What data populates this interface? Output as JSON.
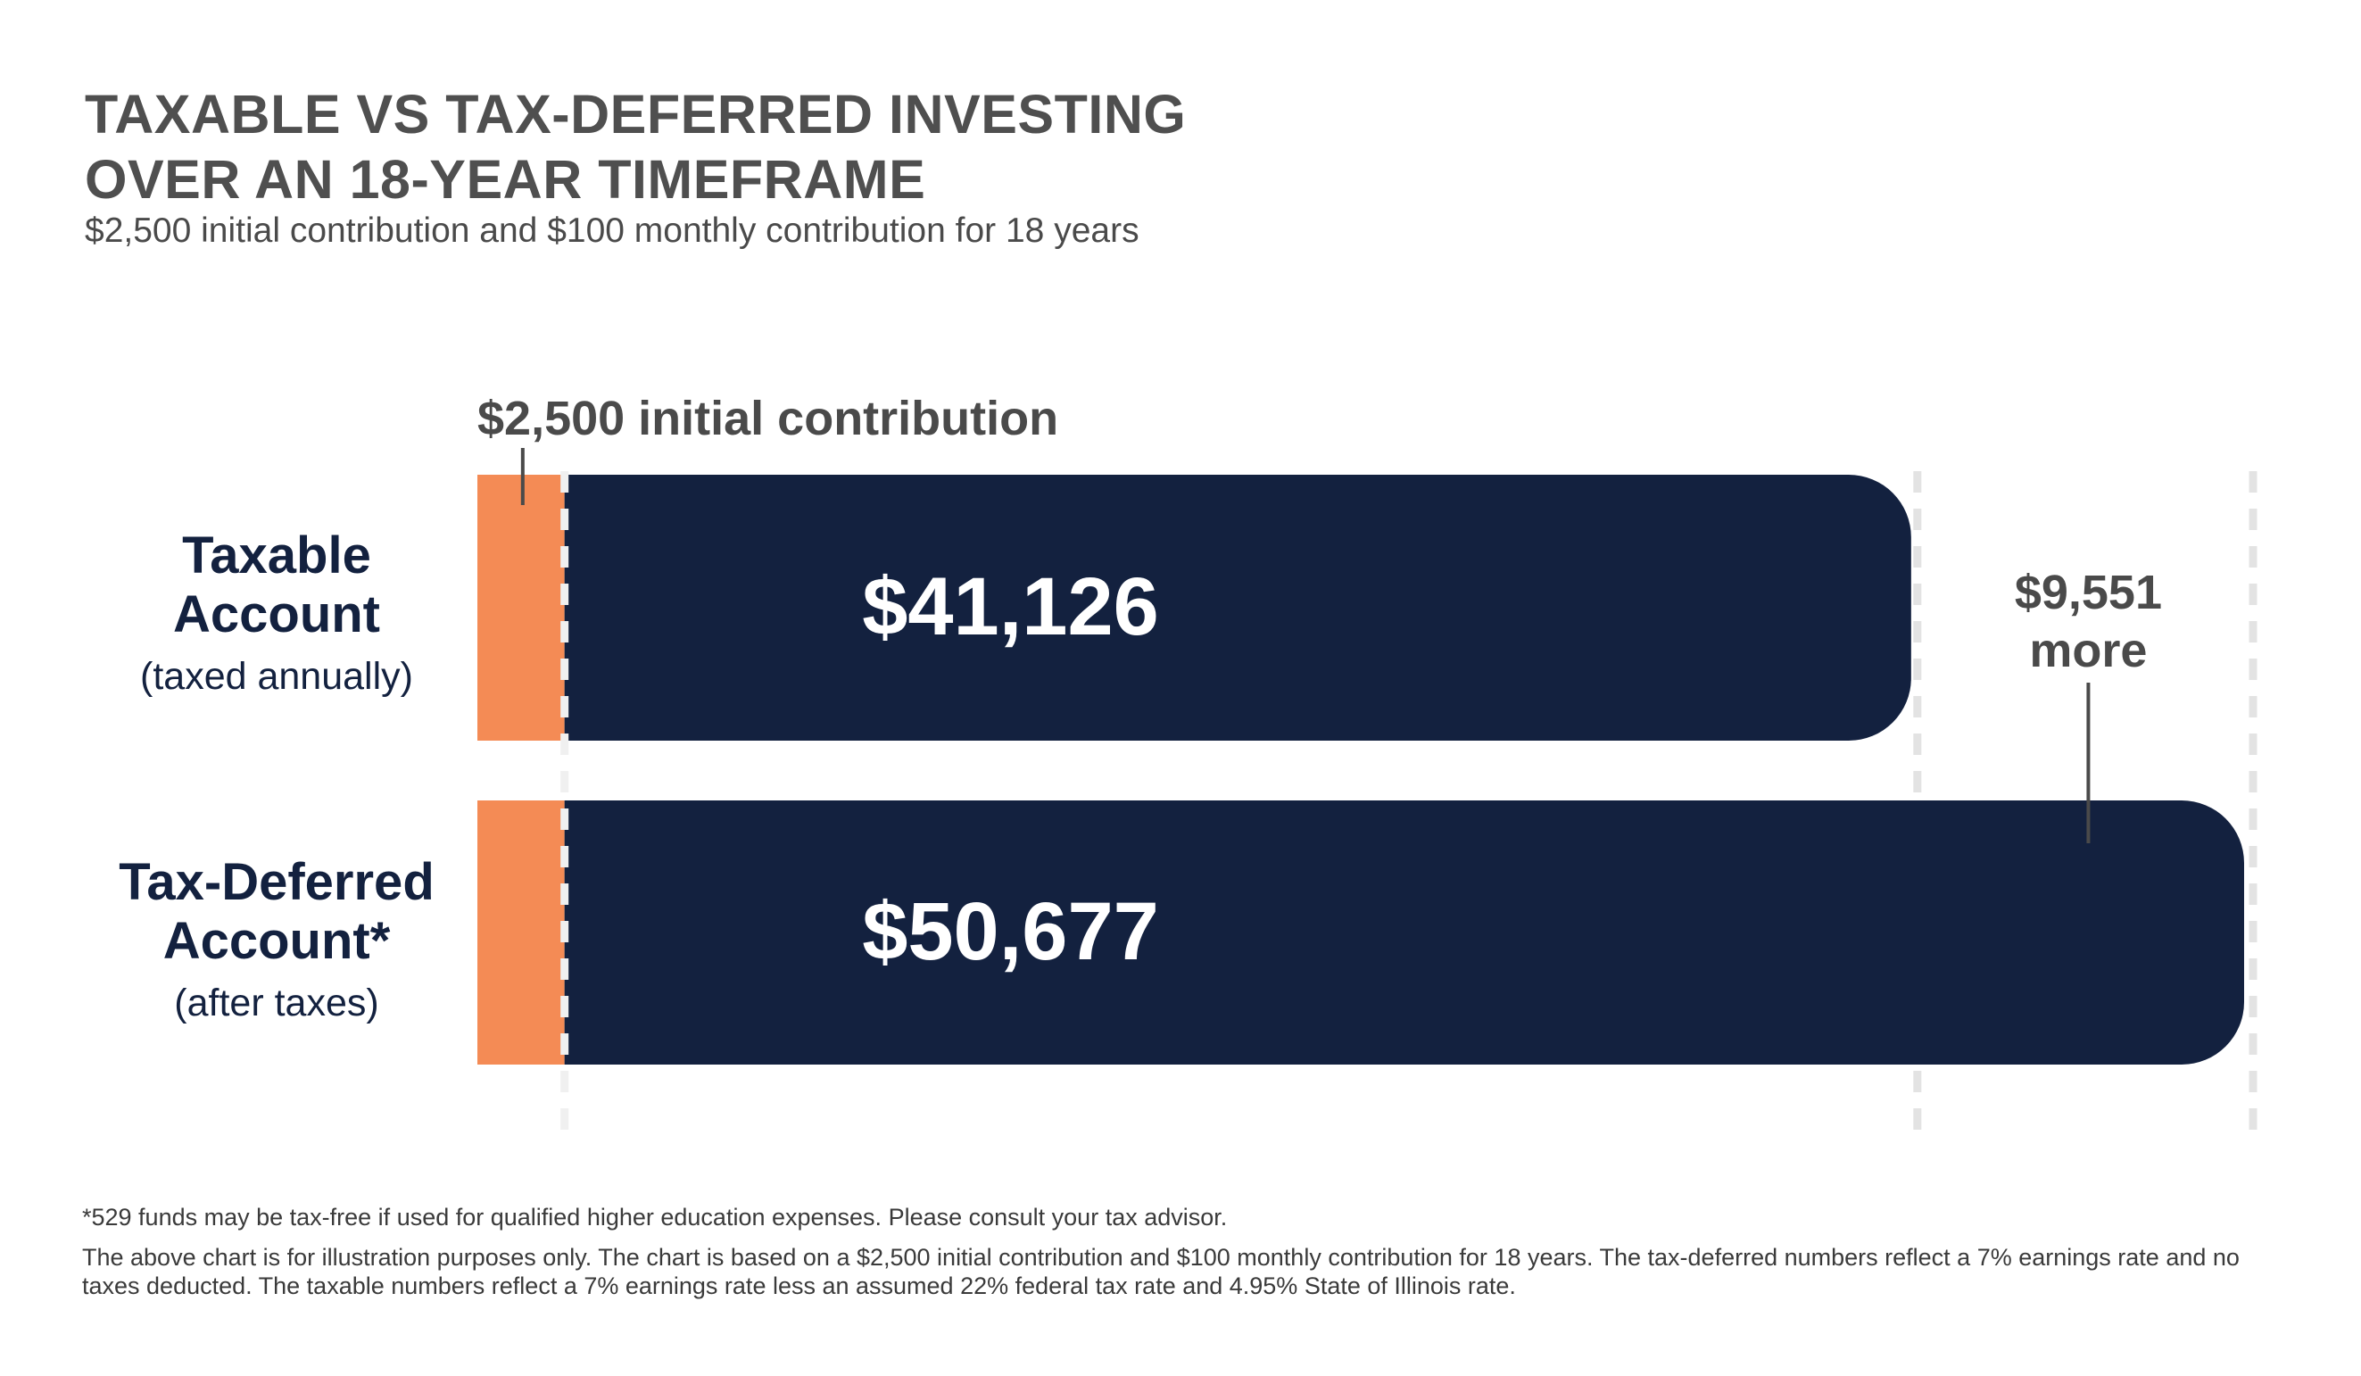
{
  "title_lines": [
    "TAXABLE VS TAX-DEFERRED INVESTING",
    "OVER AN 18-YEAR TIMEFRAME"
  ],
  "subtitle": "$2,500 initial contribution and $100 monthly contribution for 18 years",
  "colors": {
    "bar": "#13213f",
    "initial": "#f48b55",
    "text_dark": "#13213f",
    "text_grey": "#4a4a4a",
    "bar_label": "#ffffff",
    "gridline": "#e3e3e3",
    "background": "#ffffff"
  },
  "chart_data": {
    "type": "bar",
    "orientation": "horizontal",
    "stacked": true,
    "categories": [
      {
        "label": "Taxable Account",
        "sublabel": "(taxed annually)"
      },
      {
        "label": "Tax-Deferred Account*",
        "sublabel": "(after taxes)"
      }
    ],
    "label_lines": [
      [
        "Taxable",
        "Account"
      ],
      [
        "Tax-Deferred",
        "Account*"
      ]
    ],
    "initial_contribution": 2500,
    "values": [
      41126,
      50677
    ],
    "value_labels": [
      "$41,126",
      "$50,677"
    ],
    "initial_annotation": "$2,500 initial contribution",
    "difference": 9551,
    "difference_annotation": [
      "$9,551",
      "more"
    ],
    "reference_lines": [
      2500,
      41126,
      50677
    ],
    "xlim": [
      0,
      50677
    ],
    "grid": false,
    "legend": "none"
  },
  "footnotes": [
    "*529 funds may be tax-free if used for qualified higher education expenses. Please consult your tax advisor.",
    "The above chart is for illustration purposes only.  The chart is based on a $2,500 initial contribution and $100 monthly contribution for 18 years.  The tax-deferred numbers reflect a 7% earnings rate and no taxes deducted.  The taxable numbers reflect a 7% earnings rate less an assumed 22% federal tax rate and 4.95% State of Illinois rate."
  ]
}
